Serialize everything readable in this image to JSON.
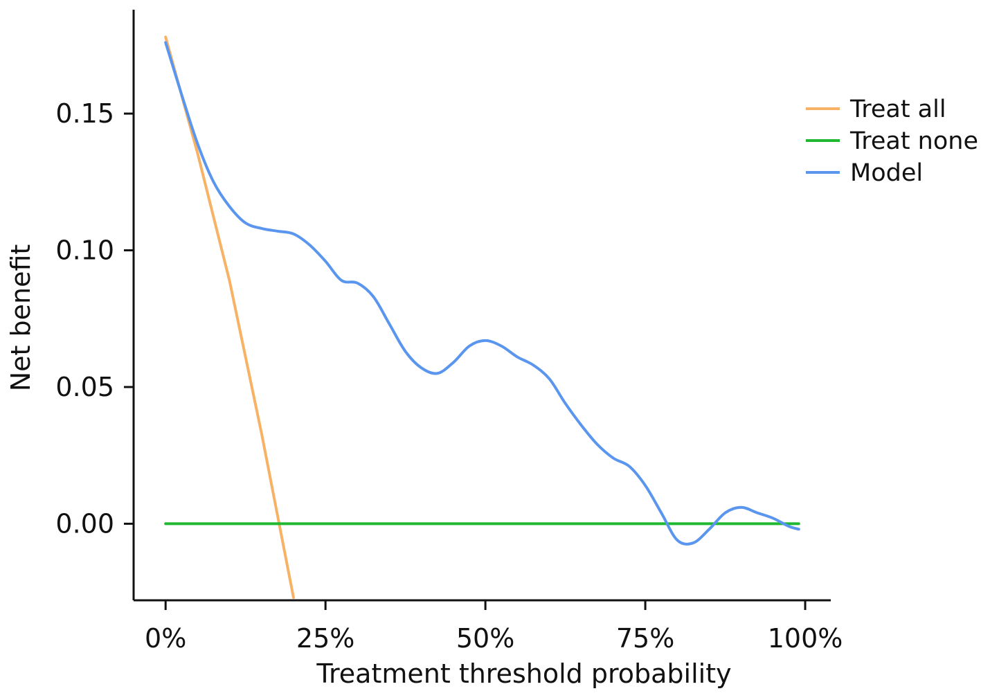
{
  "chart_data": {
    "type": "line",
    "title": "",
    "xlabel": "Treatment threshold probability",
    "ylabel": "Net benefit",
    "xlim": [
      -0.05,
      1.04
    ],
    "ylim": [
      -0.028,
      0.188
    ],
    "x_ticks": [
      0,
      0.25,
      0.5,
      0.75,
      1.0
    ],
    "x_tick_labels": [
      "0%",
      "25%",
      "50%",
      "75%",
      "100%"
    ],
    "y_ticks": [
      0.0,
      0.05,
      0.1,
      0.15
    ],
    "y_tick_labels": [
      "0.00",
      "0.05",
      "0.10",
      "0.15"
    ],
    "grid": false,
    "legend_position": "top-right",
    "series": [
      {
        "name": "Treat all",
        "color": "#f7b266",
        "x": [
          0,
          0.05,
          0.1,
          0.15,
          0.2
        ],
        "y": [
          0.178,
          0.1355,
          0.0888,
          0.0331,
          -0.027
        ]
      },
      {
        "name": "Treat none",
        "color": "#1fb830",
        "x": [
          0,
          0.99
        ],
        "y": [
          0,
          0
        ]
      },
      {
        "name": "Model",
        "color": "#5b96ee",
        "x": [
          0,
          0.025,
          0.05,
          0.075,
          0.1,
          0.125,
          0.15,
          0.175,
          0.2,
          0.225,
          0.25,
          0.275,
          0.3,
          0.325,
          0.35,
          0.375,
          0.4,
          0.425,
          0.45,
          0.475,
          0.5,
          0.525,
          0.55,
          0.575,
          0.6,
          0.625,
          0.65,
          0.675,
          0.7,
          0.725,
          0.75,
          0.775,
          0.8,
          0.825,
          0.85,
          0.875,
          0.9,
          0.925,
          0.95,
          0.975,
          0.99
        ],
        "y": [
          0.176,
          0.157,
          0.139,
          0.125,
          0.116,
          0.11,
          0.108,
          0.107,
          0.106,
          0.102,
          0.096,
          0.089,
          0.088,
          0.083,
          0.073,
          0.063,
          0.057,
          0.055,
          0.059,
          0.065,
          0.067,
          0.065,
          0.061,
          0.058,
          0.053,
          0.044,
          0.036,
          0.029,
          0.024,
          0.021,
          0.014,
          0.004,
          -0.006,
          -0.007,
          -0.002,
          0.004,
          0.006,
          0.004,
          0.002,
          -0.001,
          -0.002
        ]
      }
    ]
  }
}
